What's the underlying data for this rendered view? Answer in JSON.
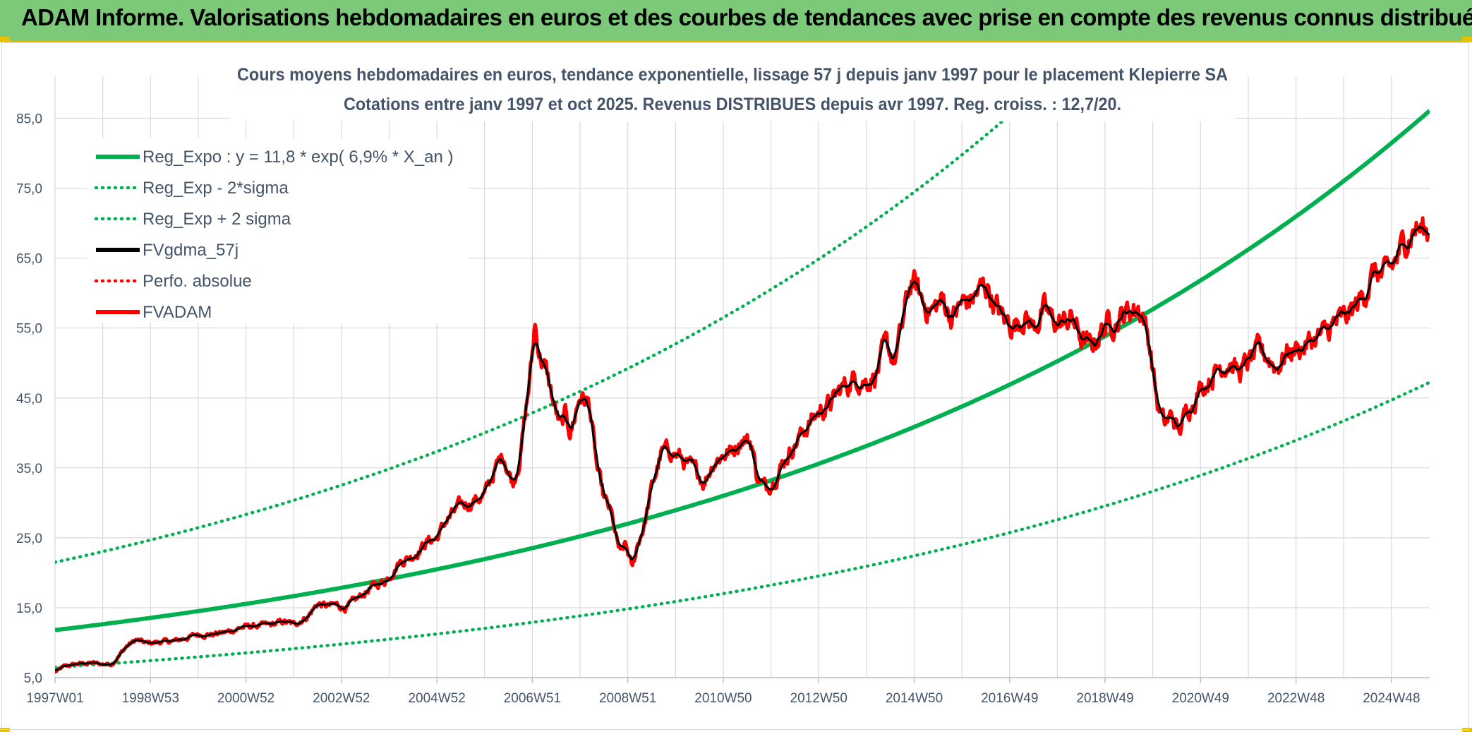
{
  "banner": {
    "title": "ADAM Informe. Valorisations hebdomadaires en euros et des courbes de tendances avec prise en compte des revenus connus distribués"
  },
  "colors": {
    "banner_bg": "#7dc97a",
    "regression": "#00b050",
    "smoothed": "#000000",
    "price": "#ff0000",
    "grid": "#d9d9d9",
    "text": "#44546a"
  },
  "chart_data": {
    "type": "line",
    "title": "Cours moyens hebdomadaires en euros, tendance exponentielle, lissage 57 j depuis janv 1997 pour le placement Klepierre SA",
    "subtitle": "Cotations entre janv 1997 et oct 2025. Revenus DISTRIBUES depuis avr 1997. Reg. croiss. : 12,7/20.",
    "xlabel": "",
    "ylabel": "",
    "ylim": [
      5,
      90
    ],
    "y_ticks": [
      5,
      15,
      25,
      35,
      45,
      55,
      65,
      75,
      85
    ],
    "y_tick_labels": [
      "5,0",
      "15,0",
      "25,0",
      "35,0",
      "45,0",
      "55,0",
      "65,0",
      "75,0",
      "85,0"
    ],
    "x_range": [
      1997.0,
      2025.8
    ],
    "x_ticks": [
      1997.0,
      1999.0,
      2001.0,
      2003.0,
      2005.0,
      2007.0,
      2009.0,
      2011.0,
      2013.0,
      2015.0,
      2017.0,
      2019.0,
      2021.0,
      2023.0,
      2025.0
    ],
    "x_tick_labels": [
      "1997W01",
      "1998W53",
      "2000W52",
      "2002W52",
      "2004W52",
      "2006W51",
      "2008W51",
      "2010W50",
      "2012W50",
      "2014W50",
      "2016W49",
      "2018W49",
      "2020W49",
      "2022W48",
      "2024W48"
    ],
    "grid": true,
    "legend_position": "top-left",
    "regression": {
      "a": 11.8,
      "rate": 0.069,
      "sigma_band": 0.6
    },
    "series": [
      {
        "name": "Reg_Expo : y = 11,8 * exp( 6,9% *  X_an )",
        "color": "#00b050",
        "style": "solid",
        "kind": "reg"
      },
      {
        "name": "Reg_Exp - 2*sigma",
        "color": "#00b050",
        "style": "dotted",
        "kind": "lower"
      },
      {
        "name": "Reg_Exp + 2 sigma",
        "color": "#00b050",
        "style": "dotted",
        "kind": "upper"
      },
      {
        "name": "FVgdma_57j",
        "color": "#000000",
        "style": "solid",
        "kind": "smooth"
      },
      {
        "name": "Perfo. absolue",
        "color": "#ff0000",
        "style": "dotted",
        "kind": "perf"
      },
      {
        "name": "FVADAM",
        "color": "#ff0000",
        "style": "solid",
        "kind": "price",
        "points": [
          [
            1997.0,
            5.8
          ],
          [
            1997.2,
            6.6
          ],
          [
            1997.5,
            7.0
          ],
          [
            1997.8,
            7.1
          ],
          [
            1998.0,
            6.9
          ],
          [
            1998.2,
            7.0
          ],
          [
            1998.5,
            9.5
          ],
          [
            1998.7,
            10.4
          ],
          [
            1998.9,
            9.9
          ],
          [
            1999.2,
            10.1
          ],
          [
            1999.5,
            10.2
          ],
          [
            1999.8,
            10.8
          ],
          [
            2000.0,
            11.2
          ],
          [
            2000.3,
            11.2
          ],
          [
            2000.6,
            11.5
          ],
          [
            2000.9,
            12.2
          ],
          [
            2001.2,
            12.4
          ],
          [
            2001.5,
            12.5
          ],
          [
            2001.8,
            13.0
          ],
          [
            2002.0,
            12.6
          ],
          [
            2002.3,
            13.8
          ],
          [
            2002.5,
            15.6
          ],
          [
            2002.7,
            15.2
          ],
          [
            2002.9,
            15.4
          ],
          [
            2003.1,
            15.0
          ],
          [
            2003.3,
            16.0
          ],
          [
            2003.6,
            17.8
          ],
          [
            2003.9,
            18.8
          ],
          [
            2004.0,
            19.5
          ],
          [
            2004.2,
            21.5
          ],
          [
            2004.5,
            22.5
          ],
          [
            2004.8,
            24.5
          ],
          [
            2005.0,
            25.0
          ],
          [
            2005.2,
            27.5
          ],
          [
            2005.5,
            29.5
          ],
          [
            2005.8,
            30.5
          ],
          [
            2006.0,
            31.0
          ],
          [
            2006.2,
            34.5
          ],
          [
            2006.4,
            37.0
          ],
          [
            2006.5,
            34.5
          ],
          [
            2006.6,
            33.0
          ],
          [
            2006.75,
            37.0
          ],
          [
            2006.9,
            45.0
          ],
          [
            2007.0,
            51.0
          ],
          [
            2007.05,
            55.8
          ],
          [
            2007.15,
            51.5
          ],
          [
            2007.3,
            48.5
          ],
          [
            2007.45,
            44.0
          ],
          [
            2007.6,
            40.5
          ],
          [
            2007.7,
            42.5
          ],
          [
            2007.8,
            40.0
          ],
          [
            2008.0,
            45.5
          ],
          [
            2008.2,
            44.0
          ],
          [
            2008.35,
            35.0
          ],
          [
            2008.5,
            30.5
          ],
          [
            2008.65,
            28.5
          ],
          [
            2008.75,
            25.0
          ],
          [
            2008.85,
            22.5
          ],
          [
            2008.95,
            24.0
          ],
          [
            2009.1,
            20.5
          ],
          [
            2009.2,
            24.0
          ],
          [
            2009.35,
            27.0
          ],
          [
            2009.5,
            32.0
          ],
          [
            2009.7,
            37.0
          ],
          [
            2009.9,
            37.5
          ],
          [
            2010.1,
            36.5
          ],
          [
            2010.3,
            35.0
          ],
          [
            2010.5,
            34.0
          ],
          [
            2010.6,
            33.0
          ],
          [
            2010.8,
            36.0
          ],
          [
            2011.0,
            37.0
          ],
          [
            2011.2,
            37.5
          ],
          [
            2011.4,
            39.5
          ],
          [
            2011.6,
            38.5
          ],
          [
            2011.7,
            34.0
          ],
          [
            2011.9,
            32.0
          ],
          [
            2012.1,
            34.0
          ],
          [
            2012.4,
            37.5
          ],
          [
            2012.7,
            40.5
          ],
          [
            2013.0,
            43.0
          ],
          [
            2013.3,
            44.5
          ],
          [
            2013.5,
            46.5
          ],
          [
            2013.8,
            48.0
          ],
          [
            2014.0,
            47.5
          ],
          [
            2014.2,
            48.5
          ],
          [
            2014.4,
            52.0
          ],
          [
            2014.6,
            50.5
          ],
          [
            2014.75,
            55.0
          ],
          [
            2014.85,
            59.0
          ],
          [
            2014.95,
            62.0
          ],
          [
            2015.05,
            60.5
          ],
          [
            2015.2,
            58.5
          ],
          [
            2015.4,
            57.5
          ],
          [
            2015.6,
            59.0
          ],
          [
            2015.8,
            56.5
          ],
          [
            2016.0,
            58.5
          ],
          [
            2016.2,
            59.0
          ],
          [
            2016.4,
            60.5
          ],
          [
            2016.55,
            61.0
          ],
          [
            2016.7,
            58.0
          ],
          [
            2016.9,
            56.0
          ],
          [
            2017.1,
            55.5
          ],
          [
            2017.3,
            57.0
          ],
          [
            2017.5,
            55.0
          ],
          [
            2017.7,
            57.5
          ],
          [
            2017.9,
            56.0
          ],
          [
            2018.1,
            55.5
          ],
          [
            2018.3,
            56.5
          ],
          [
            2018.5,
            53.5
          ],
          [
            2018.7,
            52.0
          ],
          [
            2018.9,
            54.5
          ],
          [
            2019.1,
            56.0
          ],
          [
            2019.3,
            56.5
          ],
          [
            2019.5,
            57.5
          ],
          [
            2019.7,
            58.0
          ],
          [
            2019.8,
            57.0
          ],
          [
            2019.95,
            52.0
          ],
          [
            2020.1,
            44.0
          ],
          [
            2020.25,
            41.0
          ],
          [
            2020.4,
            42.5
          ],
          [
            2020.55,
            40.0
          ],
          [
            2020.7,
            43.0
          ],
          [
            2020.85,
            45.0
          ],
          [
            2021.0,
            46.5
          ],
          [
            2021.2,
            48.0
          ],
          [
            2021.4,
            49.5
          ],
          [
            2021.6,
            50.5
          ],
          [
            2021.8,
            48.5
          ],
          [
            2022.0,
            50.0
          ],
          [
            2022.2,
            51.5
          ],
          [
            2022.4,
            51.0
          ],
          [
            2022.6,
            49.5
          ],
          [
            2022.8,
            51.5
          ],
          [
            2023.0,
            52.0
          ],
          [
            2023.2,
            52.5
          ],
          [
            2023.4,
            53.5
          ],
          [
            2023.6,
            54.0
          ],
          [
            2023.8,
            55.5
          ],
          [
            2024.0,
            56.0
          ],
          [
            2024.2,
            57.5
          ],
          [
            2024.4,
            59.5
          ],
          [
            2024.55,
            62.0
          ],
          [
            2024.7,
            63.0
          ],
          [
            2024.85,
            62.0
          ],
          [
            2025.0,
            63.5
          ],
          [
            2025.2,
            66.0
          ],
          [
            2025.35,
            68.5
          ],
          [
            2025.5,
            69.5
          ],
          [
            2025.65,
            69.0
          ],
          [
            2025.8,
            68.5
          ]
        ]
      }
    ]
  }
}
